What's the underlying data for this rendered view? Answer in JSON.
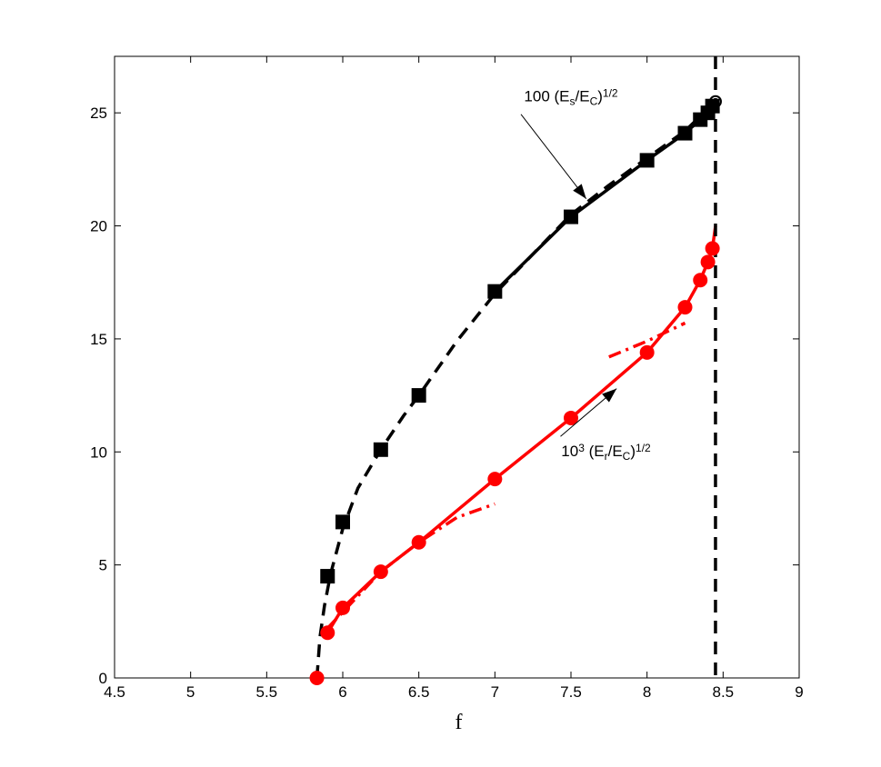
{
  "chart_data": {
    "type": "line",
    "title": "",
    "xlabel": "f",
    "ylabel": "",
    "xlim": [
      4.5,
      9
    ],
    "ylim": [
      0,
      27.5
    ],
    "xticks": [
      "4.5",
      "5",
      "5.5",
      "6",
      "6.5",
      "7",
      "7.5",
      "8",
      "8.5",
      "9"
    ],
    "yticks": [
      "0",
      "5",
      "10",
      "15",
      "20",
      "25"
    ],
    "grid": false,
    "vertical_line_x": 8.45,
    "colors": {
      "black": "#000000",
      "red": "#ff0000"
    },
    "series": [
      {
        "color": "#000000",
        "marker": "square",
        "x": [
          5.9,
          6.0,
          6.25,
          6.5,
          7.0,
          7.5,
          8.0,
          8.25,
          8.35,
          8.4,
          8.43
        ],
        "y": [
          4.5,
          6.9,
          10.1,
          12.5,
          17.1,
          20.4,
          22.9,
          24.1,
          24.7,
          25.0,
          25.3
        ]
      },
      {
        "color": "#000000",
        "style": "solid",
        "x": [
          7.0,
          7.5,
          8.0,
          8.25,
          8.35,
          8.43
        ],
        "y": [
          17.1,
          20.4,
          22.9,
          24.1,
          24.7,
          25.3
        ]
      },
      {
        "color": "#000000",
        "style": "dashed",
        "x": [
          5.83,
          5.85,
          5.88,
          5.92,
          6.0,
          6.1,
          6.25,
          6.4,
          6.5,
          6.75,
          7.0,
          7.5,
          7.75,
          8.0,
          8.25,
          8.45
        ],
        "y": [
          0,
          1.8,
          3.2,
          4.6,
          6.6,
          8.4,
          10.1,
          11.6,
          12.5,
          14.9,
          17.0,
          20.5,
          21.8,
          23.0,
          24.2,
          25.5
        ]
      },
      {
        "color": "#000000",
        "marker": "open-circle",
        "x": [
          8.45
        ],
        "y": [
          25.5
        ]
      },
      {
        "color": "#ff0000",
        "marker": "circle",
        "x": [
          5.83,
          5.9,
          6.0,
          6.25,
          6.5,
          7.0,
          7.5,
          8.0,
          8.25,
          8.35,
          8.4,
          8.43
        ],
        "y": [
          0,
          2.0,
          3.1,
          4.7,
          6.0,
          8.8,
          11.5,
          14.4,
          16.4,
          17.6,
          18.4,
          19.0
        ]
      },
      {
        "color": "#ff0000",
        "style": "solid",
        "x": [
          5.9,
          6.0,
          6.25,
          6.5,
          7.0,
          7.5,
          8.0,
          8.25,
          8.35,
          8.4,
          8.43,
          8.45
        ],
        "y": [
          2.0,
          3.1,
          4.7,
          6.0,
          8.8,
          11.5,
          14.4,
          16.4,
          17.6,
          18.4,
          19.0,
          20.0
        ]
      },
      {
        "color": "#ff0000",
        "style": "dash-dot",
        "x": [
          5.9,
          6.25,
          6.5,
          6.75,
          7.0
        ],
        "y": [
          2.2,
          4.7,
          6.0,
          7.1,
          7.7
        ]
      },
      {
        "color": "#ff0000",
        "style": "dash-dot",
        "x": [
          7.75,
          8.0,
          8.25
        ],
        "y": [
          14.2,
          14.9,
          15.7
        ]
      }
    ],
    "annotations": [
      {
        "parts": [
          "100 (E",
          "s",
          "/E",
          "C",
          ")",
          "1/2"
        ],
        "x": 7.5,
        "y": 25.5,
        "arrow_to": [
          7.6,
          21.2
        ]
      },
      {
        "parts": [
          "10",
          "3",
          " (E",
          "r",
          "/E",
          "C",
          ")",
          "1/2"
        ],
        "x": 7.73,
        "y": 9.8,
        "arrow_to": [
          7.8,
          12.8
        ]
      }
    ]
  }
}
